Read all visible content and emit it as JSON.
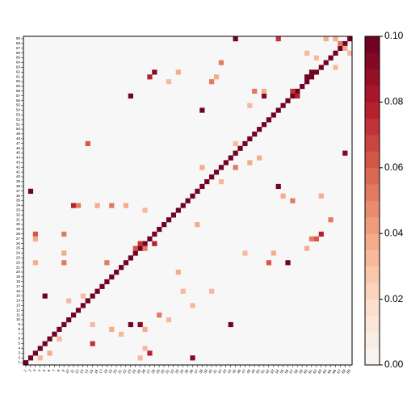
{
  "chart_data": {
    "type": "heatmap",
    "categories": [
      1,
      2,
      3,
      4,
      5,
      6,
      7,
      8,
      9,
      10,
      11,
      12,
      13,
      14,
      15,
      16,
      17,
      18,
      19,
      20,
      21,
      22,
      23,
      24,
      25,
      26,
      27,
      28,
      29,
      30,
      31,
      32,
      33,
      34,
      35,
      36,
      37,
      38,
      39,
      40,
      41,
      42,
      43,
      44,
      45,
      46,
      47,
      48,
      49,
      50,
      51,
      52,
      53,
      54,
      55,
      56,
      57,
      58,
      59,
      60,
      61,
      62,
      63,
      64,
      65,
      66,
      67,
      68,
      69
    ],
    "palette": [
      "#f7f7f7",
      "#fddbc7",
      "#f4a582",
      "#d6604d",
      "#b2182b",
      "#67001f"
    ],
    "levels": 20,
    "clim": [
      0,
      0.1
    ],
    "cticks": [
      {
        "value": 0,
        "label": "0.00"
      },
      {
        "value": 0.02,
        "label": "0.02"
      },
      {
        "value": 0.04,
        "label": "0.04"
      },
      {
        "value": 0.06,
        "label": "0.06"
      },
      {
        "value": 0.08,
        "label": "0.08"
      },
      {
        "value": 0.1,
        "label": "0.10"
      }
    ],
    "cells": [
      [
        1,
        1,
        0.1
      ],
      [
        2,
        2,
        0.1
      ],
      [
        3,
        3,
        0.1
      ],
      [
        4,
        4,
        0.1
      ],
      [
        5,
        5,
        0.1
      ],
      [
        6,
        6,
        0.1
      ],
      [
        7,
        7,
        0.1
      ],
      [
        8,
        8,
        0.1
      ],
      [
        9,
        9,
        0.1
      ],
      [
        10,
        10,
        0.1
      ],
      [
        11,
        11,
        0.1
      ],
      [
        12,
        12,
        0.1
      ],
      [
        13,
        13,
        0.1
      ],
      [
        14,
        14,
        0.1
      ],
      [
        15,
        15,
        0.1
      ],
      [
        16,
        16,
        0.1
      ],
      [
        17,
        17,
        0.1
      ],
      [
        18,
        18,
        0.1
      ],
      [
        19,
        19,
        0.1
      ],
      [
        20,
        20,
        0.1
      ],
      [
        21,
        21,
        0.1
      ],
      [
        22,
        22,
        0.1
      ],
      [
        23,
        23,
        0.1
      ],
      [
        24,
        24,
        0.1
      ],
      [
        25,
        25,
        0.1
      ],
      [
        26,
        26,
        0.1
      ],
      [
        27,
        27,
        0.1
      ],
      [
        28,
        28,
        0.1
      ],
      [
        29,
        29,
        0.1
      ],
      [
        30,
        30,
        0.1
      ],
      [
        31,
        31,
        0.1
      ],
      [
        32,
        32,
        0.1
      ],
      [
        33,
        33,
        0.1
      ],
      [
        34,
        34,
        0.1
      ],
      [
        35,
        35,
        0.1
      ],
      [
        36,
        36,
        0.1
      ],
      [
        37,
        37,
        0.1
      ],
      [
        38,
        38,
        0.1
      ],
      [
        39,
        39,
        0.1
      ],
      [
        40,
        40,
        0.1
      ],
      [
        41,
        41,
        0.1
      ],
      [
        42,
        42,
        0.1
      ],
      [
        43,
        43,
        0.1
      ],
      [
        44,
        44,
        0.1
      ],
      [
        45,
        45,
        0.1
      ],
      [
        46,
        46,
        0.1
      ],
      [
        47,
        47,
        0.1
      ],
      [
        48,
        48,
        0.1
      ],
      [
        49,
        49,
        0.1
      ],
      [
        50,
        50,
        0.1
      ],
      [
        51,
        51,
        0.1
      ],
      [
        52,
        52,
        0.1
      ],
      [
        53,
        53,
        0.1
      ],
      [
        54,
        54,
        0.1
      ],
      [
        55,
        55,
        0.1
      ],
      [
        56,
        56,
        0.1
      ],
      [
        57,
        57,
        0.1
      ],
      [
        58,
        58,
        0.1
      ],
      [
        59,
        59,
        0.1
      ],
      [
        60,
        60,
        0.1
      ],
      [
        61,
        61,
        0.1
      ],
      [
        62,
        62,
        0.1
      ],
      [
        63,
        63,
        0.1
      ],
      [
        64,
        64,
        0.1
      ],
      [
        65,
        65,
        0.1
      ],
      [
        66,
        66,
        0.1
      ],
      [
        67,
        67,
        0.1
      ],
      [
        68,
        68,
        0.1
      ],
      [
        69,
        69,
        0.1
      ],
      [
        2,
        37,
        0.1
      ],
      [
        23,
        57,
        0.1
      ],
      [
        28,
        62,
        0.09
      ],
      [
        27,
        61,
        0.08
      ],
      [
        38,
        54,
        0.1
      ],
      [
        54,
        38,
        0.1
      ],
      [
        60,
        61,
        0.1
      ],
      [
        61,
        62,
        0.1
      ],
      [
        68,
        45,
        0.09
      ],
      [
        56,
        22,
        0.1
      ],
      [
        63,
        28,
        0.08
      ],
      [
        44,
        9,
        0.1
      ],
      [
        36,
        2,
        0.09
      ],
      [
        27,
        3,
        0.08
      ],
      [
        5,
        15,
        0.1
      ],
      [
        23,
        9,
        0.1
      ],
      [
        25,
        9,
        0.09
      ],
      [
        15,
        5,
        0.07
      ],
      [
        11,
        34,
        0.08
      ],
      [
        14,
        47,
        0.06
      ],
      [
        45,
        69,
        0.1
      ],
      [
        54,
        69,
        0.07
      ],
      [
        51,
        57,
        0.09
      ],
      [
        3,
        28,
        0.06
      ],
      [
        58,
        57,
        0.08
      ],
      [
        57,
        58,
        0.07
      ],
      [
        12,
        34,
        0.05
      ],
      [
        16,
        34,
        0.04
      ],
      [
        19,
        34,
        0.05
      ],
      [
        22,
        34,
        0.04
      ],
      [
        26,
        33,
        0.03
      ],
      [
        3,
        27,
        0.04
      ],
      [
        9,
        28,
        0.05
      ],
      [
        9,
        22,
        0.05
      ],
      [
        9,
        24,
        0.04
      ],
      [
        3,
        22,
        0.04
      ],
      [
        18,
        22,
        0.05
      ],
      [
        24,
        25,
        0.06
      ],
      [
        25,
        26,
        0.07
      ],
      [
        26,
        25,
        0.05
      ],
      [
        28,
        26,
        0.08
      ],
      [
        40,
        60,
        0.05
      ],
      [
        41,
        61,
        0.04
      ],
      [
        42,
        64,
        0.05
      ],
      [
        51,
        58,
        0.04
      ],
      [
        48,
        55,
        0.03
      ],
      [
        49,
        58,
        0.05
      ],
      [
        60,
        25,
        0.04
      ],
      [
        62,
        27,
        0.06
      ],
      [
        61,
        27,
        0.05
      ],
      [
        52,
        22,
        0.06
      ],
      [
        65,
        31,
        0.05
      ],
      [
        63,
        36,
        0.04
      ],
      [
        57,
        35,
        0.05
      ],
      [
        55,
        36,
        0.04
      ],
      [
        33,
        62,
        0.04
      ],
      [
        31,
        60,
        0.03
      ],
      [
        45,
        47,
        0.03
      ],
      [
        50,
        44,
        0.04
      ],
      [
        45,
        42,
        0.05
      ],
      [
        48,
        43,
        0.04
      ],
      [
        38,
        42,
        0.04
      ],
      [
        19,
        8,
        0.04
      ],
      [
        21,
        7,
        0.03
      ],
      [
        26,
        8,
        0.04
      ],
      [
        29,
        11,
        0.05
      ],
      [
        31,
        10,
        0.03
      ],
      [
        13,
        15,
        0.03
      ],
      [
        10,
        14,
        0.03
      ],
      [
        15,
        9,
        0.03
      ],
      [
        33,
        20,
        0.04
      ],
      [
        34,
        16,
        0.03
      ],
      [
        37,
        30,
        0.04
      ],
      [
        42,
        39,
        0.03
      ],
      [
        6,
        3,
        0.04
      ],
      [
        8,
        6,
        0.03
      ],
      [
        4,
        2,
        0.03
      ],
      [
        25,
        2,
        0.03
      ],
      [
        26,
        4,
        0.03
      ],
      [
        64,
        69,
        0.04
      ],
      [
        66,
        69,
        0.04
      ],
      [
        67,
        68,
        0.05
      ],
      [
        68,
        67,
        0.04
      ],
      [
        69,
        66,
        0.03
      ],
      [
        66,
        63,
        0.03
      ],
      [
        60,
        66,
        0.03
      ],
      [
        62,
        65,
        0.03
      ],
      [
        36,
        13,
        0.03
      ],
      [
        40,
        16,
        0.03
      ],
      [
        47,
        24,
        0.03
      ],
      [
        53,
        24,
        0.04
      ]
    ]
  }
}
